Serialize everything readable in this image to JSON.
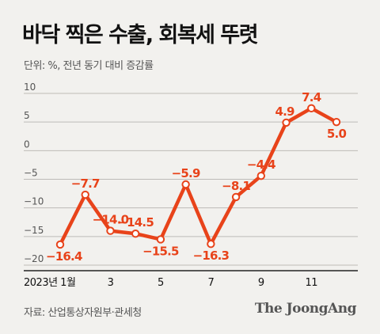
{
  "header": {
    "title": "바닥 찍은 수출, 회복세 뚜렷",
    "unit": "단위: %, 전년 동기 대비 증감률"
  },
  "footer": {
    "source": "자료: 산업통상자원부·관세청",
    "brand": "The JoongAng"
  },
  "colors": {
    "line": "#e8431a",
    "label": "#e8431a",
    "grid": "#bdbbb7",
    "axis": "#222222"
  },
  "chart_data": {
    "type": "line",
    "x": [
      1,
      2,
      3,
      4,
      5,
      6,
      7,
      8,
      9,
      10,
      11,
      12
    ],
    "x_tick_labels": [
      {
        "x": 1,
        "label": "2023년 1월"
      },
      {
        "x": 3,
        "label": "3"
      },
      {
        "x": 5,
        "label": "5"
      },
      {
        "x": 7,
        "label": "7"
      },
      {
        "x": 9,
        "label": "9"
      },
      {
        "x": 11,
        "label": "11"
      }
    ],
    "y_ticks": [
      10,
      5,
      0,
      -5,
      -10,
      -15,
      -20
    ],
    "y_tick_labels": [
      "10",
      "5",
      "0",
      "−5",
      "−10",
      "−15",
      "−20"
    ],
    "ylim": [
      -20,
      10
    ],
    "grid": true,
    "series": [
      {
        "values": [
          -16.4,
          -7.7,
          -14.0,
          -14.5,
          -15.5,
          -5.9,
          -16.3,
          -8.1,
          -4.4,
          4.9,
          7.4,
          5.0
        ],
        "labels": [
          "−16.4",
          "−7.7",
          "−14.0",
          "−14.5",
          "−15.5",
          "−5.9",
          "−16.3",
          "−8.1",
          "−4.4",
          "4.9",
          "7.4",
          "5.0"
        ]
      }
    ]
  }
}
